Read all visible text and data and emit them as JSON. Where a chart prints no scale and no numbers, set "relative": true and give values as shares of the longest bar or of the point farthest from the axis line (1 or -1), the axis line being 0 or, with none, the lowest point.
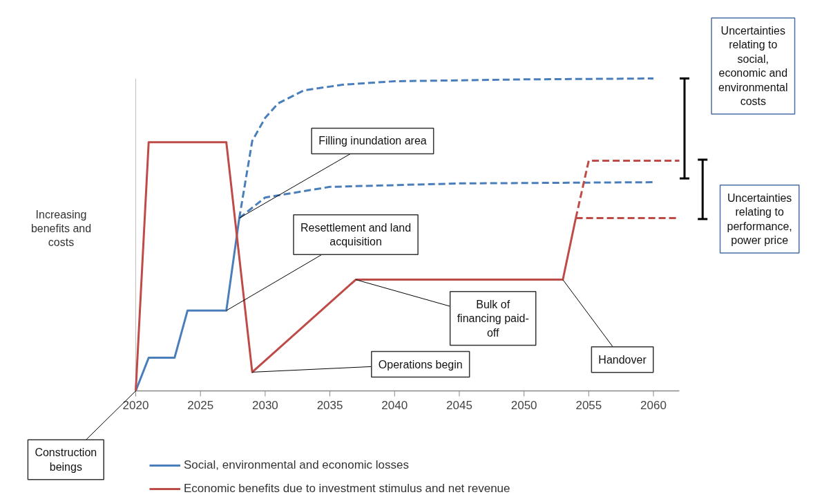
{
  "chart_data": {
    "type": "line",
    "relative": true,
    "ylabel": "Increasing benefits and costs",
    "xlim": [
      2020,
      2062
    ],
    "xticks": [
      2020,
      2025,
      2030,
      2035,
      2040,
      2045,
      2050,
      2055,
      2060
    ],
    "tick_labels": "x",
    "grid": false,
    "legend": "bottom",
    "marker": "none",
    "series": [
      {
        "name": "Social, environmental and economic losses",
        "color": "#4a7ebb",
        "x": [
          2020,
          2021,
          2023,
          2024,
          2027,
          2028
        ],
        "values": [
          0,
          0.106,
          0.106,
          0.257,
          0.257,
          0.553
        ]
      },
      {
        "color": "#4a7ebb",
        "line_style": "dashed",
        "x": [
          2028,
          2029,
          2030,
          2031,
          2033,
          2036,
          2040,
          2050,
          2060
        ],
        "values": [
          0.553,
          0.8,
          0.874,
          0.92,
          0.962,
          0.98,
          0.991,
          0.997,
          1
        ]
      },
      {
        "color": "#4a7ebb",
        "line_style": "dashed",
        "x": [
          2028,
          2030,
          2035,
          2045,
          2060
        ],
        "values": [
          0.553,
          0.619,
          0.653,
          0.664,
          0.668
        ]
      },
      {
        "name": "Economic benefits due to investment stimulus and net revenue",
        "color": "#be4b48",
        "x": [
          2020,
          2021,
          2027,
          2029,
          2037,
          2053,
          2054
        ],
        "values": [
          0,
          0.796,
          0.796,
          0.06,
          0.356,
          0.356,
          0.553
        ]
      },
      {
        "color": "#be4b48",
        "line_style": "dashed",
        "x": [
          2054,
          2055,
          2062
        ],
        "values": [
          0.553,
          0.737,
          0.737
        ]
      },
      {
        "color": "#be4b48",
        "line_style": "dashed",
        "x": [
          2054,
          2055,
          2062
        ],
        "values": [
          0.553,
          0.553,
          0.553
        ]
      }
    ],
    "annotations": [
      {
        "text": "Filling inundation area",
        "x": 2028,
        "y": 0.553
      },
      {
        "text": "Resettlement and land acquisition",
        "x": 2027,
        "y": 0.257
      },
      {
        "text": "Bulk of financing paid-off",
        "x": 2037,
        "y": 0.356
      },
      {
        "text": "Operations begin",
        "x": 2029,
        "y": 0.06
      },
      {
        "text": "Handover",
        "x": 2053,
        "y": 0.356
      },
      {
        "text": "Construction beings",
        "x": 2020,
        "y": 0
      },
      "Uncertainties relating to social, economic and environmental costs",
      "Uncertainties relating to performance, power price"
    ]
  }
}
